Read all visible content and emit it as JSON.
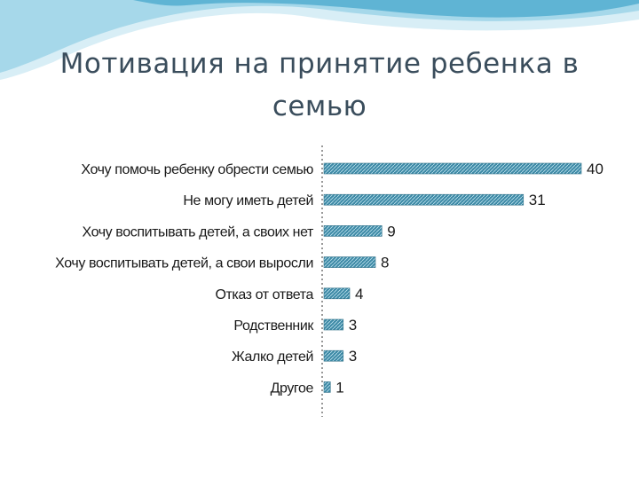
{
  "slide": {
    "title": "Мотивация на принятие ребенка в семью"
  },
  "colors": {
    "title": "#3a4d5c",
    "bar": "#3e8aa6",
    "wave_light": "#d8eef6",
    "wave_mid": "#a6d8ea",
    "wave_dark": "#5fb4d4"
  },
  "chart_data": {
    "type": "bar",
    "orientation": "horizontal",
    "categories": [
      "Хочу помочь ребенку обрести семью",
      "Не могу иметь детей",
      "Хочу воспитывать детей, а своих нет",
      "Хочу воспитывать детей, а свои выросли",
      "Отказ от ответа",
      "Родственник",
      "Жалко детей",
      "Другое"
    ],
    "values": [
      40,
      31,
      9,
      8,
      4,
      3,
      3,
      1
    ],
    "title": "",
    "xlabel": "",
    "ylabel": "",
    "xlim": [
      0,
      40
    ],
    "grid": false,
    "legend": "none"
  }
}
